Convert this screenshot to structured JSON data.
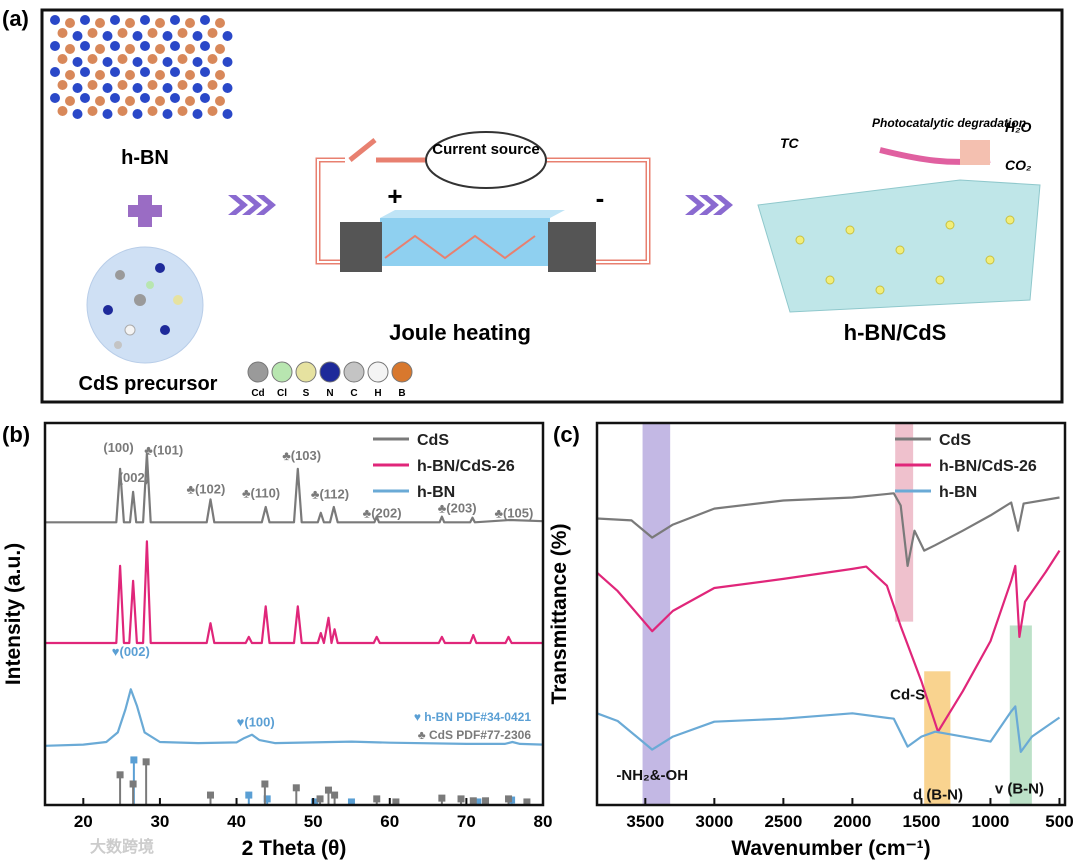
{
  "schematic": {
    "panel_label": "(a)",
    "hbn_label": "h-BN",
    "precursor_label": "CdS precursor",
    "source_label": "Current source",
    "plus": "+",
    "minus": "-",
    "process_label": "Joule heating",
    "product_label": "h-BN/CdS",
    "tc_label": "TC",
    "reaction_label": "Photocatalytic degradation",
    "h2o_label": "H₂O",
    "co2_label": "CO₂",
    "atoms": [
      {
        "label": "Cd",
        "color": "#9a9a9a"
      },
      {
        "label": "Cl",
        "color": "#b8e6b0"
      },
      {
        "label": "S",
        "color": "#e6e2a0"
      },
      {
        "label": "N",
        "color": "#1e2a9a"
      },
      {
        "label": "C",
        "color": "#c4c4c4"
      },
      {
        "label": "H",
        "color": "#f4f4f4"
      },
      {
        "label": "B",
        "color": "#d8782e"
      }
    ]
  },
  "watermark": "大数跨境",
  "chart_data": [
    {
      "type": "line",
      "panel_label": "(b)",
      "xlabel": "2 Theta (θ)",
      "ylabel": "Intensity (a.u.)",
      "xlim": [
        15,
        80
      ],
      "ylim": [
        0,
        100
      ],
      "xticks": [
        20,
        30,
        40,
        50,
        60,
        70,
        80
      ],
      "legend": "upper right",
      "series": [
        {
          "name": "CdS",
          "color": "#7a7a7a",
          "x": [
            15,
            24.3,
            24.8,
            25.3,
            26.1,
            26.5,
            26.9,
            27.8,
            28.3,
            28.8,
            36.1,
            36.6,
            37.1,
            43.3,
            43.8,
            44.3,
            47.5,
            48,
            48.5,
            50.6,
            51,
            51.4,
            52.2,
            52.7,
            53.2,
            58,
            58.3,
            58.6,
            66.5,
            66.8,
            67.1,
            70.5,
            70.8,
            71.1,
            75.7,
            80
          ],
          "values": [
            74,
            74,
            88,
            74,
            74,
            82,
            74,
            74,
            92,
            74,
            74,
            80,
            74,
            74,
            78,
            74,
            74,
            88,
            74,
            74,
            76.5,
            74,
            74,
            78,
            74,
            74,
            75.5,
            74,
            74,
            75.5,
            74,
            74,
            75.2,
            74,
            74.6,
            74.3
          ]
        },
        {
          "name": "h-BN/CdS-26",
          "color": "#e0267a",
          "x": [
            15,
            24.3,
            24.8,
            25.3,
            26,
            26.5,
            27,
            27.8,
            28.3,
            28.8,
            36.1,
            36.6,
            37.1,
            41.2,
            41.6,
            42,
            43.3,
            43.8,
            44.3,
            47.5,
            48,
            48.5,
            50.6,
            51,
            51.4,
            52,
            52.4,
            52.8,
            53.2,
            57.9,
            58.3,
            58.7,
            66.4,
            66.8,
            67.2,
            70.5,
            70.9,
            71.3,
            75.1,
            75.5,
            75.9,
            80
          ],
          "values": [
            42.4,
            42.4,
            62.6,
            42.4,
            42.4,
            58.7,
            42.4,
            42.4,
            69,
            42.4,
            42.4,
            47.6,
            42.4,
            42.4,
            44,
            42.4,
            42.4,
            52,
            42.4,
            42.4,
            52,
            42.4,
            42.4,
            45,
            42.4,
            49,
            42.4,
            46,
            42.4,
            42.4,
            44,
            42.4,
            42.4,
            44,
            42.4,
            42.4,
            44.5,
            42.4,
            42.4,
            44,
            42.4,
            42.4
          ]
        },
        {
          "name": "h-BN",
          "color": "#6aaad6",
          "x": [
            15,
            20,
            23,
            24.5,
            25.5,
            26.2,
            27,
            28,
            30,
            35,
            40,
            41,
            42,
            43,
            45,
            50,
            55,
            60,
            70,
            75,
            76,
            77,
            80
          ],
          "values": [
            15.5,
            15.8,
            16.5,
            19,
            25,
            30.3,
            26,
            19,
            16.5,
            16.2,
            16.4,
            17.5,
            18.4,
            17,
            16.2,
            16.4,
            16.6,
            16.3,
            16,
            16,
            16.5,
            16,
            15.8
          ]
        }
      ],
      "references": [
        {
          "name": "♥ h-BN PDF#34-0421",
          "color": "#5a9fd4",
          "x": [
            26.6,
            41.6,
            44,
            50.2,
            55,
            71.5,
            75.9
          ],
          "values": [
            11.8,
            2.6,
            1.6,
            0.8,
            0.8,
            0.8,
            1.3
          ]
        },
        {
          "name": "♣ CdS PDF#77-2306",
          "color": "#7a7a7a",
          "x": [
            24.8,
            26.5,
            28.2,
            36.6,
            43.7,
            47.8,
            50.9,
            52,
            52.8,
            58.3,
            60.8,
            66.8,
            69.3,
            70.9,
            72.5,
            75.5,
            77.9
          ],
          "values": [
            7.9,
            5.5,
            11.3,
            2.6,
            5.5,
            4.5,
            1.6,
            3.9,
            2.6,
            1.6,
            0.8,
            1.8,
            1.6,
            1.1,
            1.1,
            1.6,
            0.8
          ]
        }
      ],
      "annotations": [
        {
          "text": "(100)",
          "x": 24.6,
          "y": 92.4,
          "color": "#7a7a7a"
        },
        {
          "text": "(002)",
          "x": 26.6,
          "y": 84.5,
          "color": "#7a7a7a"
        },
        {
          "text": "♣(101)",
          "x": 30.5,
          "y": 91.8,
          "color": "#7a7a7a"
        },
        {
          "text": "♣(103)",
          "x": 48.5,
          "y": 90.3,
          "color": "#7a7a7a"
        },
        {
          "text": "♣(102)",
          "x": 36,
          "y": 81.6,
          "color": "#7a7a7a"
        },
        {
          "text": "♣(110)",
          "x": 43.2,
          "y": 80.5,
          "color": "#7a7a7a"
        },
        {
          "text": "♣(112)",
          "x": 52.2,
          "y": 80.3,
          "color": "#7a7a7a"
        },
        {
          "text": "♣(202)",
          "x": 59,
          "y": 75.3,
          "color": "#7a7a7a"
        },
        {
          "text": "♣(203)",
          "x": 68.8,
          "y": 76.6,
          "color": "#7a7a7a"
        },
        {
          "text": "♣(105)",
          "x": 76.2,
          "y": 75.3,
          "color": "#7a7a7a"
        },
        {
          "text": "♥(002)",
          "x": 26.2,
          "y": 39,
          "color": "#5a9fd4"
        },
        {
          "text": "♥(100)",
          "x": 42.5,
          "y": 20.5,
          "color": "#5a9fd4"
        }
      ]
    },
    {
      "type": "line",
      "panel_label": "(c)",
      "xlabel": "Wavenumber (cm⁻¹)",
      "ylabel": "Transmittance (%)",
      "xlim": [
        3850,
        460
      ],
      "ylim": [
        0,
        100
      ],
      "xticks": [
        3500,
        3000,
        2500,
        2000,
        1500,
        1000,
        500
      ],
      "legend": "upper right",
      "series": [
        {
          "name": "CdS",
          "color": "#7a7a7a",
          "x": [
            3850,
            3600,
            3450,
            3300,
            3000,
            2500,
            2000,
            1700,
            1650,
            1600,
            1550,
            1480,
            1400,
            1200,
            1000,
            850,
            800,
            760,
            500
          ],
          "values": [
            75,
            74.5,
            70,
            73.4,
            77.6,
            79.7,
            80.5,
            81.6,
            78.4,
            62.6,
            71.8,
            66.6,
            68,
            71.8,
            75.8,
            79.2,
            71.8,
            78.9,
            80.5
          ]
        },
        {
          "name": "h-BN/CdS-26",
          "color": "#e0267a",
          "x": [
            3850,
            3700,
            3450,
            3300,
            3000,
            2500,
            2000,
            1900,
            1750,
            1650,
            1500,
            1380,
            1200,
            1000,
            850,
            820,
            790,
            750,
            600,
            500
          ],
          "values": [
            60.8,
            56,
            45.5,
            50.8,
            56.8,
            59.2,
            61.8,
            62.4,
            57.4,
            46.8,
            32.4,
            19.2,
            29.8,
            42.9,
            58.7,
            62.6,
            44,
            53.2,
            61,
            66.6
          ]
        },
        {
          "name": "h-BN",
          "color": "#6aaad6",
          "x": [
            3850,
            3700,
            3450,
            3300,
            3000,
            2500,
            2000,
            1700,
            1600,
            1500,
            1400,
            1200,
            1000,
            850,
            820,
            780,
            700,
            500
          ],
          "values": [
            24,
            22,
            14.5,
            17.9,
            21.8,
            22.6,
            24,
            22.6,
            15.3,
            17.9,
            19.2,
            17.9,
            16.6,
            24.5,
            25.8,
            13.9,
            17.9,
            22.9
          ]
        }
      ],
      "bands": [
        {
          "label": "-NH₂&-OH",
          "x": [
            3520,
            3320
          ],
          "y": [
            0,
            100
          ],
          "color": "#a99ad8",
          "label_x": 3450,
          "label_y": 6.6
        },
        {
          "label": "Cd-S",
          "x": [
            1690,
            1560
          ],
          "y": [
            48,
            100
          ],
          "color": "#e8a6b8",
          "label_x": 1600,
          "label_y": 27.6
        },
        {
          "label": "d (B-N)",
          "x": [
            1480,
            1290
          ],
          "y": [
            0,
            35
          ],
          "color": "#f7c060",
          "label_x": 1380,
          "label_y": 1.5
        },
        {
          "label": "v (B-N)",
          "x": [
            860,
            700
          ],
          "y": [
            0,
            47
          ],
          "color": "#9fd4b0",
          "label_x": 790,
          "label_y": 3
        }
      ]
    }
  ]
}
